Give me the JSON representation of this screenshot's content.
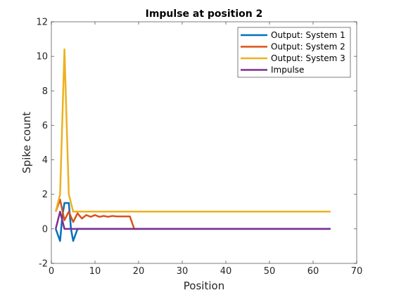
{
  "chart_data": {
    "type": "line",
    "title": "Impulse at position 2",
    "xlabel": "Position",
    "ylabel": "Spike count",
    "xlim": [
      0,
      70
    ],
    "ylim": [
      -2,
      12
    ],
    "xticks": [
      0,
      10,
      20,
      30,
      40,
      50,
      60,
      70
    ],
    "yticks": [
      -2,
      0,
      2,
      4,
      6,
      8,
      10,
      12
    ],
    "grid": false,
    "legend_position": "top-right",
    "series": [
      {
        "name": "Output: System 1",
        "color": "#0072BD",
        "points": [
          [
            1,
            0
          ],
          [
            2,
            -0.7
          ],
          [
            2.5,
            0.7
          ],
          [
            3,
            1.5
          ],
          [
            4,
            1.5
          ],
          [
            4.5,
            0
          ],
          [
            5,
            -0.7
          ],
          [
            6,
            0
          ],
          [
            64,
            0
          ]
        ]
      },
      {
        "name": "Output: System 2",
        "color": "#D95319",
        "points": [
          [
            1,
            1
          ],
          [
            2,
            1.7
          ],
          [
            3,
            0.5
          ],
          [
            4,
            1.0
          ],
          [
            5,
            0.4
          ],
          [
            6,
            0.9
          ],
          [
            7,
            0.6
          ],
          [
            8,
            0.8
          ],
          [
            9,
            0.7
          ],
          [
            10,
            0.8
          ],
          [
            11,
            0.7
          ],
          [
            12,
            0.75
          ],
          [
            13,
            0.7
          ],
          [
            14,
            0.75
          ],
          [
            15,
            0.72
          ],
          [
            16,
            0.72
          ],
          [
            17,
            0.72
          ],
          [
            18,
            0.72
          ],
          [
            19,
            0
          ],
          [
            20,
            0
          ]
        ]
      },
      {
        "name": "Output: System 3",
        "color": "#EDB120",
        "points": [
          [
            1,
            1
          ],
          [
            2,
            2
          ],
          [
            3,
            10.4
          ],
          [
            4,
            2
          ],
          [
            5,
            1
          ],
          [
            64,
            1
          ]
        ]
      },
      {
        "name": "Impulse",
        "color": "#7E2F8E",
        "points": [
          [
            1,
            0
          ],
          [
            2,
            1
          ],
          [
            3,
            0
          ],
          [
            64,
            0
          ]
        ]
      }
    ]
  }
}
